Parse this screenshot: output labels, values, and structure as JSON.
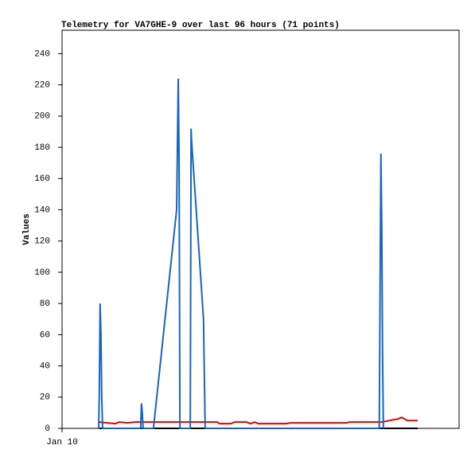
{
  "chart_data": {
    "type": "line",
    "title": "Telemetry for VA7GHE-9 over last 96 hours (71 points)",
    "y_label": "Values",
    "xlim": [
      0,
      96
    ],
    "xticks": [
      {
        "value": 0,
        "label": "Jan 10"
      }
    ],
    "ylim": [
      0,
      255
    ],
    "yticks": [
      0,
      20,
      40,
      60,
      80,
      100,
      120,
      140,
      160,
      180,
      200,
      220,
      240
    ],
    "series": [
      {
        "color": "#000000",
        "x": [
          9.0,
          86.0
        ],
        "values": [
          0,
          0
        ]
      },
      {
        "color": "#e00000",
        "x": [
          9.0,
          11.0,
          12.9,
          13.8,
          15.8,
          17.7,
          19.6,
          23.5,
          31.2,
          37.5,
          38.1,
          40.8,
          41.7,
          44.6,
          45.6,
          46.5,
          47.5,
          54.2,
          55.2,
          61.9,
          68.7,
          69.6,
          77.3,
          79.2,
          81.2,
          82.1,
          83.5,
          86.0
        ],
        "values": [
          4,
          3.5,
          3,
          4,
          3.5,
          4,
          4,
          4,
          4,
          4,
          3,
          3,
          4,
          4,
          3,
          4,
          3,
          3,
          3.5,
          3.5,
          3.5,
          4,
          4,
          5,
          6,
          7,
          5,
          5
        ]
      },
      {
        "color": "#1565c0",
        "x": [
          8.85,
          9.0,
          9.2,
          9.4,
          9.6,
          9.8,
          19.0,
          19.2,
          19.4,
          19.6,
          22.1,
          27.7,
          28.1,
          28.3,
          28.5,
          31.0,
          31.2,
          31.3,
          34.2,
          34.6,
          76.7,
          76.9,
          77.1,
          77.3,
          77.5,
          77.7
        ],
        "values": [
          0,
          20,
          80,
          60,
          20,
          0,
          0,
          16,
          10,
          0,
          0,
          140,
          224,
          170,
          0,
          0,
          192,
          185,
          70,
          0,
          0,
          90,
          176,
          130,
          45,
          0
        ]
      }
    ]
  }
}
